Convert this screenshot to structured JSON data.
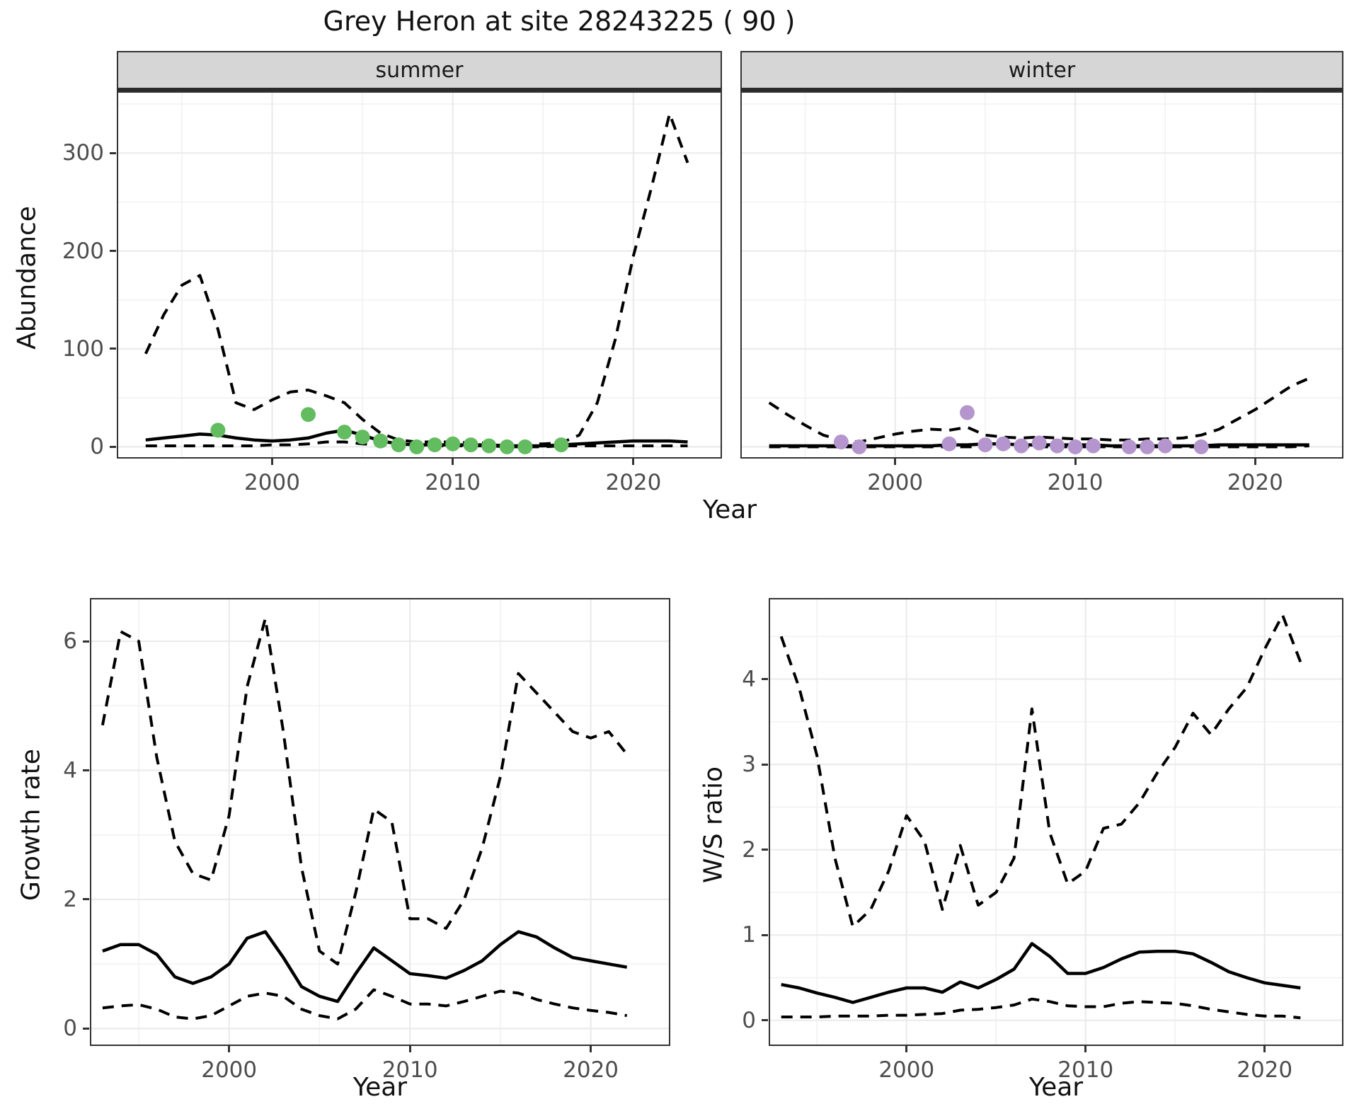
{
  "title": "Grey Heron at site 28243225 ( 90 )",
  "facets": {
    "summer": "summer",
    "winter": "winter"
  },
  "axes": {
    "abundance": "Abundance",
    "year": "Year",
    "growth": "Growth rate",
    "ws": "W/S ratio"
  },
  "colors": {
    "observed_summer": "#63bc5f",
    "observed_winter": "#b595cd",
    "line": "#000000",
    "grid_major": "#ebebeb",
    "grid_minor": "#f0f0f0",
    "strip_bg": "#d6d6d6",
    "panel_border": "#333333",
    "tick_text": "#4d4d4d"
  },
  "chart_data": [
    {
      "id": "summer",
      "type": "line",
      "title": "summer",
      "xlabel": "Year",
      "ylabel": "Abundance",
      "xlim": [
        1991.4,
        2024.9
      ],
      "ylim": [
        -12,
        363
      ],
      "x_ticks": [
        2000,
        2010,
        2020
      ],
      "y_ticks": [
        0,
        100,
        200,
        300
      ],
      "grid": true,
      "series": [
        {
          "name": "fit",
          "style": "solid",
          "x": [
            1993,
            1994,
            1995,
            1996,
            1997,
            1998,
            1999,
            2000,
            2001,
            2002,
            2003,
            2004,
            2005,
            2006,
            2007,
            2008,
            2009,
            2010,
            2011,
            2012,
            2013,
            2014,
            2015,
            2016,
            2017,
            2018,
            2019,
            2020,
            2021,
            2022,
            2023
          ],
          "y": [
            7,
            9,
            11,
            13,
            12,
            9,
            7,
            6,
            7,
            9,
            14,
            17,
            12,
            6,
            3,
            2,
            2,
            2,
            2,
            2,
            1,
            1,
            1,
            2,
            3,
            4,
            5,
            6,
            6,
            6,
            5
          ]
        },
        {
          "name": "upper_ci",
          "style": "dashed",
          "x": [
            1993,
            1994,
            1995,
            1996,
            1997,
            1998,
            1999,
            2000,
            2001,
            2002,
            2003,
            2004,
            2005,
            2006,
            2007,
            2008,
            2009,
            2010,
            2011,
            2012,
            2013,
            2014,
            2015,
            2016,
            2017,
            2018,
            2019,
            2020,
            2021,
            2022,
            2023
          ],
          "y": [
            95,
            135,
            165,
            175,
            120,
            45,
            38,
            48,
            56,
            58,
            52,
            45,
            28,
            14,
            7,
            5,
            5,
            5,
            4,
            4,
            3,
            3,
            3,
            4,
            12,
            45,
            110,
            195,
            265,
            340,
            290
          ]
        },
        {
          "name": "lower_ci",
          "style": "dashed",
          "x": [
            1993,
            1994,
            1995,
            1996,
            1997,
            1998,
            1999,
            2000,
            2001,
            2002,
            2003,
            2004,
            2005,
            2006,
            2007,
            2008,
            2009,
            2010,
            2011,
            2012,
            2013,
            2014,
            2015,
            2016,
            2017,
            2018,
            2019,
            2020,
            2021,
            2022,
            2023
          ],
          "y": [
            1,
            1,
            1,
            1,
            1,
            1,
            1,
            2,
            2,
            3,
            5,
            5,
            3,
            2,
            1,
            1,
            1,
            1,
            1,
            1,
            0,
            0,
            0,
            1,
            1,
            1,
            1,
            1,
            1,
            1,
            1
          ]
        }
      ],
      "points": {
        "name": "observed",
        "color": "#63bc5f",
        "x": [
          1997,
          2002,
          2004,
          2005,
          2006,
          2007,
          2008,
          2009,
          2010,
          2011,
          2012,
          2013,
          2014,
          2016
        ],
        "y": [
          17,
          33,
          15,
          10,
          6,
          2,
          0,
          2,
          3,
          2,
          1,
          0,
          0,
          2
        ]
      }
    },
    {
      "id": "winter",
      "type": "line",
      "title": "winter",
      "xlabel": "Year",
      "ylabel": "Abundance",
      "xlim": [
        1991.4,
        2024.9
      ],
      "ylim": [
        -12,
        363
      ],
      "x_ticks": [
        2000,
        2010,
        2020
      ],
      "y_ticks": [
        0,
        100,
        200,
        300
      ],
      "grid": true,
      "series": [
        {
          "name": "fit",
          "style": "solid",
          "x": [
            1993,
            1994,
            1995,
            1996,
            1997,
            1998,
            1999,
            2000,
            2001,
            2002,
            2003,
            2004,
            2005,
            2006,
            2007,
            2008,
            2009,
            2010,
            2011,
            2012,
            2013,
            2014,
            2015,
            2016,
            2017,
            2018,
            2019,
            2020,
            2021,
            2022,
            2023
          ],
          "y": [
            1,
            1,
            1,
            1,
            1,
            1,
            1,
            1,
            1,
            1,
            2,
            2,
            3,
            3,
            2,
            2,
            2,
            2,
            2,
            1,
            1,
            1,
            1,
            1,
            1,
            2,
            2,
            2,
            2,
            2,
            2
          ]
        },
        {
          "name": "upper_ci",
          "style": "dashed",
          "x": [
            1993,
            1994,
            1995,
            1996,
            1997,
            1998,
            1999,
            2000,
            2001,
            2002,
            2003,
            2004,
            2005,
            2006,
            2007,
            2008,
            2009,
            2010,
            2011,
            2012,
            2013,
            2014,
            2015,
            2016,
            2017,
            2018,
            2019,
            2020,
            2021,
            2022,
            2023
          ],
          "y": [
            45,
            33,
            22,
            12,
            7,
            5,
            9,
            13,
            16,
            18,
            17,
            20,
            12,
            10,
            9,
            10,
            9,
            8,
            8,
            7,
            7,
            8,
            8,
            9,
            12,
            18,
            28,
            38,
            50,
            62,
            70
          ]
        },
        {
          "name": "lower_ci",
          "style": "dashed",
          "x": [
            1993,
            1994,
            1995,
            1996,
            1997,
            1998,
            1999,
            2000,
            2001,
            2002,
            2003,
            2004,
            2005,
            2006,
            2007,
            2008,
            2009,
            2010,
            2011,
            2012,
            2013,
            2014,
            2015,
            2016,
            2017,
            2018,
            2019,
            2020,
            2021,
            2022,
            2023
          ],
          "y": [
            0,
            0,
            0,
            0,
            0,
            0,
            0,
            0,
            0,
            0,
            0,
            0,
            0,
            0,
            0,
            0,
            0,
            0,
            0,
            0,
            0,
            0,
            0,
            0,
            0,
            0,
            0,
            0,
            0,
            0,
            1
          ]
        }
      ],
      "points": {
        "name": "observed",
        "color": "#b595cd",
        "x": [
          1997,
          1998,
          2003,
          2004,
          2005,
          2006,
          2007,
          2008,
          2009,
          2010,
          2011,
          2013,
          2014,
          2015,
          2017
        ],
        "y": [
          5,
          0,
          3,
          35,
          2,
          3,
          1,
          4,
          1,
          0,
          1,
          0,
          0,
          1,
          0
        ]
      }
    },
    {
      "id": "growth",
      "type": "line",
      "title": "Growth rate",
      "xlabel": "Year",
      "ylabel": "Growth rate",
      "xlim": [
        1992.3,
        2024.4
      ],
      "ylim": [
        -0.27,
        6.67
      ],
      "x_ticks": [
        2000,
        2010,
        2020
      ],
      "y_ticks": [
        0,
        2,
        4,
        6
      ],
      "grid": true,
      "series": [
        {
          "name": "fit",
          "style": "solid",
          "x": [
            1993,
            1994,
            1995,
            1996,
            1997,
            1998,
            1999,
            2000,
            2001,
            2002,
            2003,
            2004,
            2005,
            2006,
            2007,
            2008,
            2009,
            2010,
            2011,
            2012,
            2013,
            2014,
            2015,
            2016,
            2017,
            2018,
            2019,
            2020,
            2021,
            2022
          ],
          "y": [
            1.2,
            1.3,
            1.3,
            1.15,
            0.8,
            0.7,
            0.8,
            1.0,
            1.4,
            1.5,
            1.1,
            0.65,
            0.5,
            0.42,
            0.85,
            1.25,
            1.05,
            0.85,
            0.82,
            0.78,
            0.9,
            1.05,
            1.3,
            1.5,
            1.42,
            1.25,
            1.1,
            1.05,
            1.0,
            0.95
          ]
        },
        {
          "name": "upper_ci",
          "style": "dashed",
          "x": [
            1993,
            1994,
            1995,
            1996,
            1997,
            1998,
            1999,
            2000,
            2001,
            2002,
            2003,
            2004,
            2005,
            2006,
            2007,
            2008,
            2009,
            2010,
            2011,
            2012,
            2013,
            2014,
            2015,
            2016,
            2017,
            2018,
            2019,
            2020,
            2021,
            2022
          ],
          "y": [
            4.7,
            6.15,
            6.0,
            4.2,
            2.9,
            2.4,
            2.3,
            3.3,
            5.3,
            6.35,
            4.6,
            2.5,
            1.2,
            1.0,
            2.1,
            3.4,
            3.2,
            1.7,
            1.7,
            1.55,
            2.0,
            2.8,
            3.9,
            5.5,
            5.2,
            4.9,
            4.6,
            4.5,
            4.6,
            4.25
          ]
        },
        {
          "name": "lower_ci",
          "style": "dashed",
          "x": [
            1993,
            1994,
            1995,
            1996,
            1997,
            1998,
            1999,
            2000,
            2001,
            2002,
            2003,
            2004,
            2005,
            2006,
            2007,
            2008,
            2009,
            2010,
            2011,
            2012,
            2013,
            2014,
            2015,
            2016,
            2017,
            2018,
            2019,
            2020,
            2021,
            2022
          ],
          "y": [
            0.32,
            0.35,
            0.37,
            0.3,
            0.18,
            0.15,
            0.2,
            0.35,
            0.5,
            0.55,
            0.5,
            0.3,
            0.2,
            0.15,
            0.3,
            0.6,
            0.5,
            0.38,
            0.38,
            0.35,
            0.42,
            0.5,
            0.58,
            0.55,
            0.45,
            0.38,
            0.32,
            0.28,
            0.25,
            0.2
          ]
        }
      ]
    },
    {
      "id": "ws",
      "type": "line",
      "title": "W/S ratio",
      "xlabel": "Year",
      "ylabel": "W/S ratio",
      "xlim": [
        1992.3,
        2024.4
      ],
      "ylim": [
        -0.3,
        4.95
      ],
      "x_ticks": [
        2000,
        2010,
        2020
      ],
      "y_ticks": [
        0,
        1,
        2,
        3,
        4
      ],
      "grid": true,
      "series": [
        {
          "name": "fit",
          "style": "solid",
          "x": [
            1993,
            1994,
            1995,
            1996,
            1997,
            1998,
            1999,
            2000,
            2001,
            2002,
            2003,
            2004,
            2005,
            2006,
            2007,
            2008,
            2009,
            2010,
            2011,
            2012,
            2013,
            2014,
            2015,
            2016,
            2017,
            2018,
            2019,
            2020,
            2021,
            2022
          ],
          "y": [
            0.42,
            0.38,
            0.32,
            0.27,
            0.21,
            0.27,
            0.33,
            0.38,
            0.38,
            0.33,
            0.45,
            0.38,
            0.48,
            0.6,
            0.9,
            0.75,
            0.55,
            0.55,
            0.62,
            0.72,
            0.8,
            0.81,
            0.81,
            0.78,
            0.68,
            0.57,
            0.5,
            0.44,
            0.41,
            0.38
          ]
        },
        {
          "name": "upper_ci",
          "style": "dashed",
          "x": [
            1993,
            1994,
            1995,
            1996,
            1997,
            1998,
            1999,
            2000,
            2001,
            2002,
            2003,
            2004,
            2005,
            2006,
            2007,
            2008,
            2009,
            2010,
            2011,
            2012,
            2013,
            2014,
            2015,
            2016,
            2017,
            2018,
            2019,
            2020,
            2021,
            2022
          ],
          "y": [
            4.5,
            3.9,
            3.1,
            1.9,
            1.1,
            1.3,
            1.75,
            2.4,
            2.1,
            1.3,
            2.05,
            1.35,
            1.5,
            1.9,
            3.65,
            2.2,
            1.6,
            1.75,
            2.25,
            2.3,
            2.55,
            2.9,
            3.2,
            3.6,
            3.35,
            3.65,
            3.9,
            4.35,
            4.75,
            4.2
          ]
        },
        {
          "name": "lower_ci",
          "style": "dashed",
          "x": [
            1993,
            1994,
            1995,
            1996,
            1997,
            1998,
            1999,
            2000,
            2001,
            2002,
            2003,
            2004,
            2005,
            2006,
            2007,
            2008,
            2009,
            2010,
            2011,
            2012,
            2013,
            2014,
            2015,
            2016,
            2017,
            2018,
            2019,
            2020,
            2021,
            2022
          ],
          "y": [
            0.04,
            0.04,
            0.04,
            0.05,
            0.05,
            0.05,
            0.06,
            0.06,
            0.07,
            0.08,
            0.12,
            0.13,
            0.15,
            0.18,
            0.25,
            0.22,
            0.17,
            0.16,
            0.16,
            0.2,
            0.22,
            0.21,
            0.2,
            0.17,
            0.13,
            0.1,
            0.07,
            0.05,
            0.05,
            0.03
          ]
        }
      ]
    }
  ]
}
